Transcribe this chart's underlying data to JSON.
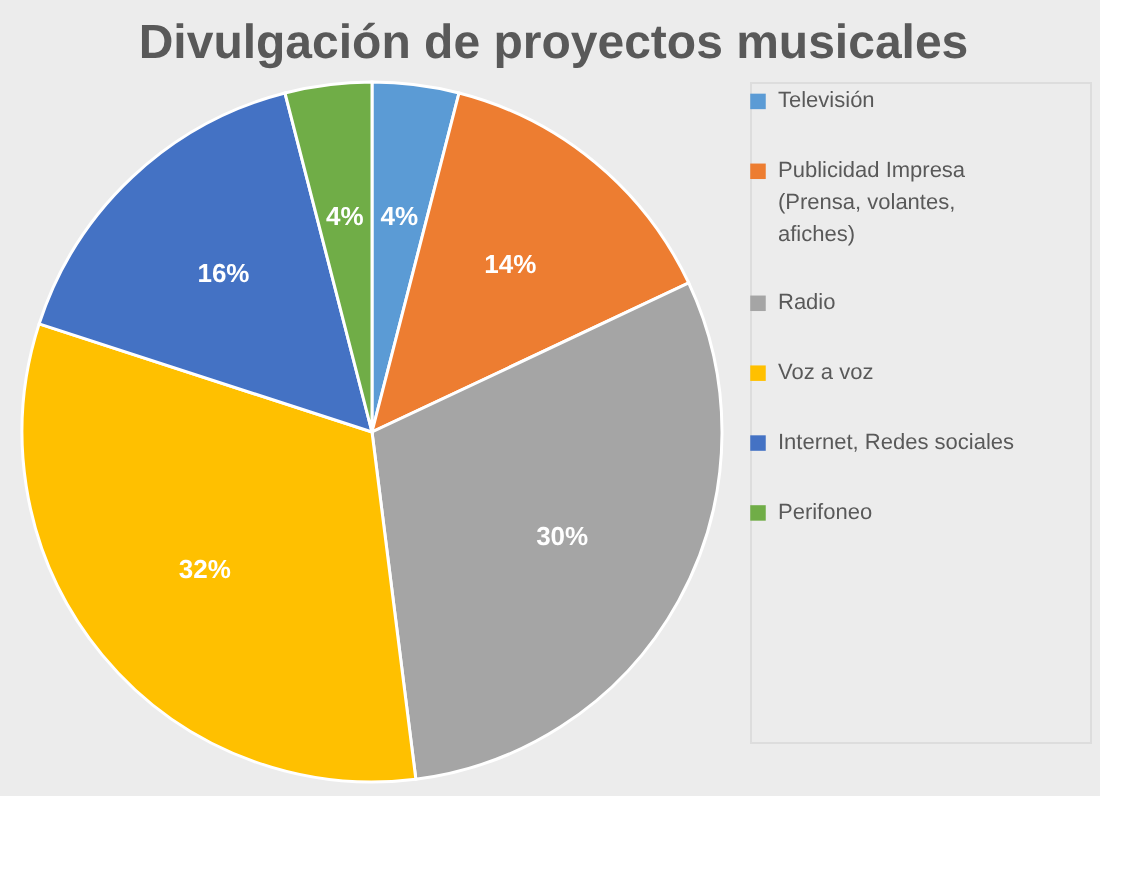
{
  "chart_data": {
    "type": "pie",
    "title": "Divulgación de proyectos musicales",
    "categories": [
      "Televisión",
      "Publicidad Impresa (Prensa, volantes, afiches)",
      "Radio",
      "Voz a voz",
      "Internet, Redes sociales",
      "Perifoneo"
    ],
    "values": [
      4,
      14,
      30,
      32,
      16,
      4
    ],
    "colors": [
      "#5b9bd5",
      "#ed7d31",
      "#a5a5a5",
      "#ffc000",
      "#4472c4",
      "#70ad47"
    ],
    "value_labels": [
      "4%",
      "14%",
      "30%",
      "32%",
      "16%",
      "4%"
    ],
    "legend": "right"
  }
}
